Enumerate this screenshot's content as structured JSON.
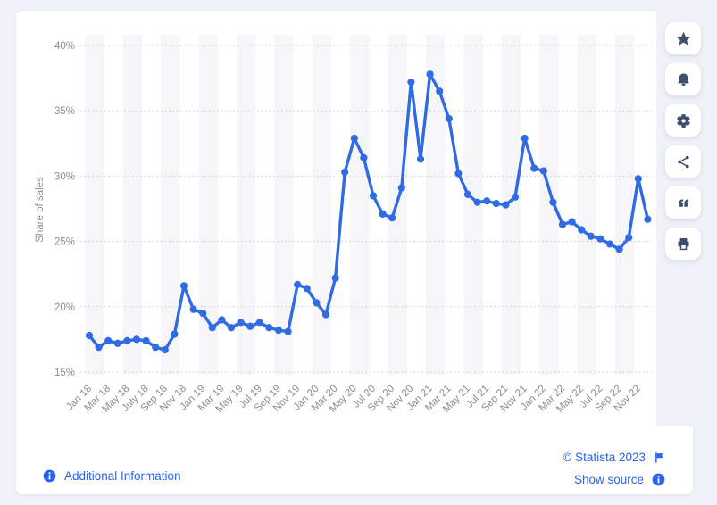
{
  "chart_data": {
    "type": "line",
    "title": "",
    "ylabel": "Share of sales",
    "xlabel": "",
    "ylim": [
      15,
      40
    ],
    "grid": "horizontal-dotted",
    "legend": "none",
    "line_color": "#2e6be4",
    "marker": "circle",
    "band_color": "#f6f6f8",
    "y_ticks": [
      "15%",
      "20%",
      "25%",
      "30%",
      "35%",
      "40%"
    ],
    "x_tick_labels": [
      "Jan 18",
      "Mar 18",
      "May 18",
      "July 18",
      "Sep 18",
      "Nov 18",
      "Jan 19",
      "Mar 19",
      "May 19",
      "Jul 19",
      "Sep 19",
      "Nov 19",
      "Jan 20",
      "Mar 20",
      "May 20",
      "Jul 20",
      "Sep 20",
      "Nov 20",
      "Jan 21",
      "Mar 21",
      "May 21",
      "Jul 21",
      "Sep 21",
      "Nov 21",
      "Jan 22",
      "Mar 22",
      "May 22",
      "Jul 22",
      "Sep 22",
      "Nov 22"
    ],
    "x": [
      "Jan 18",
      "Feb 18",
      "Mar 18",
      "Apr 18",
      "May 18",
      "Jun 18",
      "Jul 18",
      "Aug 18",
      "Sep 18",
      "Oct 18",
      "Nov 18",
      "Dec 18",
      "Jan 19",
      "Feb 19",
      "Mar 19",
      "Apr 19",
      "May 19",
      "Jun 19",
      "Jul 19",
      "Aug 19",
      "Sep 19",
      "Oct 19",
      "Nov 19",
      "Dec 19",
      "Jan 20",
      "Feb 20",
      "Mar 20",
      "Apr 20",
      "May 20",
      "Jun 20",
      "Jul 20",
      "Aug 20",
      "Sep 20",
      "Oct 20",
      "Nov 20",
      "Dec 20",
      "Jan 21",
      "Feb 21",
      "Mar 21",
      "Apr 21",
      "May 21",
      "Jun 21",
      "Jul 21",
      "Aug 21",
      "Sep 21",
      "Oct 21",
      "Nov 21",
      "Dec 21",
      "Jan 22",
      "Feb 22",
      "Mar 22",
      "Apr 22",
      "May 22",
      "Jun 22",
      "Jul 22",
      "Aug 22",
      "Sep 22",
      "Oct 22",
      "Nov 22",
      "Dec 22"
    ],
    "values": [
      17.8,
      16.9,
      17.4,
      17.2,
      17.4,
      17.5,
      17.4,
      16.9,
      16.7,
      17.9,
      21.6,
      19.8,
      19.5,
      18.4,
      19.0,
      18.4,
      18.8,
      18.5,
      18.8,
      18.4,
      18.2,
      18.1,
      21.7,
      21.4,
      20.3,
      19.4,
      22.2,
      30.3,
      32.9,
      31.4,
      28.5,
      27.1,
      26.8,
      29.1,
      37.2,
      31.3,
      37.8,
      36.5,
      34.4,
      30.2,
      28.6,
      28.0,
      28.1,
      27.9,
      27.8,
      28.4,
      32.9,
      30.6,
      30.4,
      28.0,
      26.3,
      26.5,
      25.9,
      25.4,
      25.2,
      24.8,
      24.4,
      25.3,
      29.8,
      26.7
    ]
  },
  "sidebar": {
    "buttons": [
      "star",
      "bell",
      "gear",
      "share",
      "quote",
      "print"
    ]
  },
  "footer": {
    "additional_information": "Additional Information",
    "copyright": "© Statista 2023",
    "show_source": "Show source"
  },
  "colors": {
    "page_background": "#eff2f8",
    "card_background": "#ffffff",
    "link_blue": "#2a63f0",
    "icon_navy": "#3f4e6b",
    "axis_text": "#8e8e8e",
    "gridline": "#c9c9c9"
  }
}
